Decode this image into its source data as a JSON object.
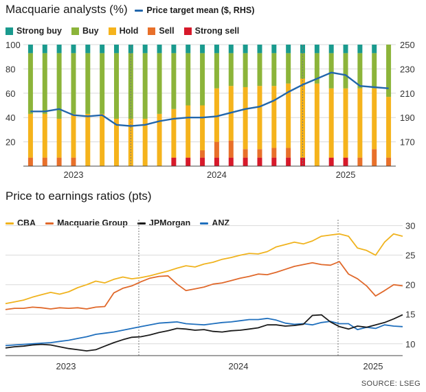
{
  "chart_data": [
    {
      "type": "bar",
      "title": "Macquarie analysts (%)",
      "legend_position": "top",
      "colors": {
        "strong_buy": "#1a9a8e",
        "buy": "#8cb43a",
        "hold": "#f5b31c",
        "sell": "#e8702a",
        "strong_sell": "#d7192a",
        "price_target": "#2166ac"
      },
      "series_labels": [
        "Strong buy",
        "Buy",
        "Hold",
        "Sell",
        "Strong sell"
      ],
      "line_label": "Price target mean ($, RHS)",
      "ylim_left": [
        0,
        100
      ],
      "ylim_right": [
        150,
        250
      ],
      "left_ticks": [
        20,
        40,
        60,
        80,
        100
      ],
      "right_ticks": [
        170,
        190,
        210,
        230,
        250
      ],
      "x_tick_labels": [
        "2023",
        "2024",
        "2025"
      ],
      "bars": [
        {
          "strong_buy": 7,
          "buy": 50,
          "hold": 36,
          "sell": 7,
          "strong_sell": 0
        },
        {
          "strong_buy": 7,
          "buy": 50,
          "hold": 36,
          "sell": 7,
          "strong_sell": 0
        },
        {
          "strong_buy": 7,
          "buy": 54,
          "hold": 32,
          "sell": 7,
          "strong_sell": 0
        },
        {
          "strong_buy": 7,
          "buy": 50,
          "hold": 36,
          "sell": 7,
          "strong_sell": 0
        },
        {
          "strong_buy": 7,
          "buy": 50,
          "hold": 43,
          "sell": 0,
          "strong_sell": 0
        },
        {
          "strong_buy": 7,
          "buy": 50,
          "hold": 43,
          "sell": 0,
          "strong_sell": 0
        },
        {
          "strong_buy": 7,
          "buy": 54,
          "hold": 39,
          "sell": 0,
          "strong_sell": 0
        },
        {
          "strong_buy": 7,
          "buy": 54,
          "hold": 39,
          "sell": 0,
          "strong_sell": 0
        },
        {
          "strong_buy": 7,
          "buy": 54,
          "hold": 39,
          "sell": 0,
          "strong_sell": 0
        },
        {
          "strong_buy": 7,
          "buy": 50,
          "hold": 43,
          "sell": 0,
          "strong_sell": 0
        },
        {
          "strong_buy": 7,
          "buy": 46,
          "hold": 40,
          "sell": 0,
          "strong_sell": 7
        },
        {
          "strong_buy": 7,
          "buy": 43,
          "hold": 43,
          "sell": 0,
          "strong_sell": 7
        },
        {
          "strong_buy": 7,
          "buy": 43,
          "hold": 37,
          "sell": 6,
          "strong_sell": 7
        },
        {
          "strong_buy": 7,
          "buy": 29,
          "hold": 44,
          "sell": 13,
          "strong_sell": 7
        },
        {
          "strong_buy": 7,
          "buy": 27,
          "hold": 45,
          "sell": 14,
          "strong_sell": 7
        },
        {
          "strong_buy": 7,
          "buy": 28,
          "hold": 51,
          "sell": 7,
          "strong_sell": 7
        },
        {
          "strong_buy": 7,
          "buy": 27,
          "hold": 52,
          "sell": 7,
          "strong_sell": 7
        },
        {
          "strong_buy": 7,
          "buy": 27,
          "hold": 51,
          "sell": 8,
          "strong_sell": 7
        },
        {
          "strong_buy": 7,
          "buy": 25,
          "hold": 53,
          "sell": 8,
          "strong_sell": 7
        },
        {
          "strong_buy": 7,
          "buy": 21,
          "hold": 65,
          "sell": 0,
          "strong_sell": 7
        },
        {
          "strong_buy": 7,
          "buy": 25,
          "hold": 68,
          "sell": 0,
          "strong_sell": 0
        },
        {
          "strong_buy": 7,
          "buy": 29,
          "hold": 57,
          "sell": 0,
          "strong_sell": 7
        },
        {
          "strong_buy": 7,
          "buy": 29,
          "hold": 57,
          "sell": 0,
          "strong_sell": 7
        },
        {
          "strong_buy": 7,
          "buy": 29,
          "hold": 57,
          "sell": 7,
          "strong_sell": 0
        },
        {
          "strong_buy": 7,
          "buy": 29,
          "hold": 50,
          "sell": 14,
          "strong_sell": 0
        },
        {
          "strong_buy": 0,
          "buy": 43,
          "hold": 50,
          "sell": 7,
          "strong_sell": 0
        }
      ],
      "price_target_mean": [
        195,
        195,
        197,
        192,
        191,
        192,
        184,
        183,
        184,
        187,
        189,
        190,
        190,
        191,
        194,
        197,
        199,
        204,
        211,
        217,
        222,
        227,
        225,
        216,
        215,
        214
      ]
    },
    {
      "type": "line",
      "title": "Price to earnings ratios (pts)",
      "legend_position": "top",
      "ylim": [
        8,
        31
      ],
      "y_ticks": [
        10,
        15,
        20,
        25,
        30
      ],
      "x_tick_labels": [
        "2023",
        "2024",
        "2025"
      ],
      "series": [
        {
          "name": "CBA",
          "color": "#f0b31e",
          "values": [
            16.8,
            17.1,
            17.4,
            17.9,
            18.3,
            18.7,
            18.4,
            18.8,
            19.5,
            20.0,
            20.6,
            20.3,
            20.9,
            21.3,
            21.0,
            21.2,
            21.5,
            21.9,
            22.3,
            22.8,
            23.2,
            23.0,
            23.5,
            23.8,
            24.3,
            24.6,
            25.0,
            25.3,
            25.2,
            25.6,
            26.4,
            26.8,
            27.2,
            26.9,
            27.4,
            28.2,
            28.4,
            28.6,
            28.2,
            26.2,
            25.8,
            25.0,
            27.2,
            28.6,
            28.2
          ]
        },
        {
          "name": "Macquarie Group",
          "color": "#e0682a",
          "values": [
            15.8,
            16.0,
            16.0,
            16.2,
            16.1,
            15.9,
            16.1,
            16.0,
            16.1,
            15.9,
            16.2,
            16.3,
            18.6,
            19.4,
            19.8,
            20.5,
            21.1,
            21.4,
            21.5,
            20.1,
            19.0,
            19.3,
            19.6,
            20.1,
            20.3,
            20.7,
            21.1,
            21.4,
            21.8,
            21.7,
            22.1,
            22.6,
            23.1,
            23.4,
            23.7,
            23.4,
            23.3,
            23.9,
            21.8,
            21.0,
            19.8,
            18.1,
            19.0,
            20.0,
            19.8
          ]
        },
        {
          "name": "JPMorgan",
          "color": "#1a1a1a",
          "values": [
            9.3,
            9.5,
            9.6,
            9.8,
            9.9,
            9.8,
            9.5,
            9.2,
            9.0,
            8.8,
            9.0,
            9.6,
            10.2,
            10.7,
            11.1,
            11.2,
            11.5,
            11.9,
            12.2,
            12.6,
            12.5,
            12.3,
            12.4,
            12.1,
            12.0,
            12.2,
            12.3,
            12.5,
            12.7,
            13.2,
            13.2,
            13.0,
            13.1,
            13.3,
            14.8,
            14.9,
            13.7,
            12.9,
            12.5,
            13.0,
            12.8,
            13.2,
            13.6,
            14.2,
            14.9
          ]
        },
        {
          "name": "ANZ",
          "color": "#1f6fbd",
          "values": [
            9.7,
            9.8,
            9.9,
            10.0,
            10.1,
            10.2,
            10.4,
            10.6,
            10.9,
            11.2,
            11.6,
            11.8,
            12.0,
            12.3,
            12.6,
            12.9,
            13.2,
            13.5,
            13.6,
            13.7,
            13.4,
            13.3,
            13.2,
            13.4,
            13.6,
            13.7,
            13.9,
            14.1,
            14.1,
            14.3,
            14.0,
            13.5,
            13.3,
            13.4,
            13.2,
            13.6,
            13.8,
            13.4,
            13.4,
            12.4,
            12.8,
            12.6,
            13.2,
            13.0,
            12.9
          ]
        }
      ]
    }
  ],
  "source": "SOURCE: LSEG"
}
